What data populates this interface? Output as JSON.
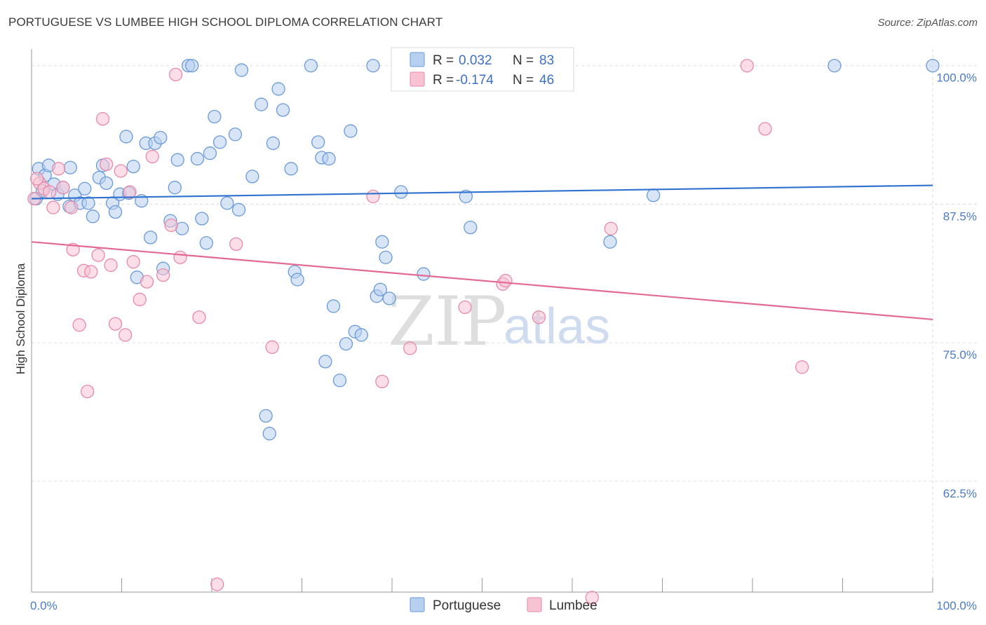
{
  "title": "PORTUGUESE VS LUMBEE HIGH SCHOOL DIPLOMA CORRELATION CHART",
  "source": "Source: ZipAtlas.com",
  "watermark": {
    "zip": "ZIP",
    "atlas": "atlas"
  },
  "colors": {
    "portuguese_fill": "#b8d0f0",
    "portuguese_stroke": "#6a9ad8",
    "portuguese_line": "#2f72cf",
    "lumbee_fill": "#f7c3d3",
    "lumbee_stroke": "#e88aa8",
    "lumbee_line": "#e36a93",
    "tick_label": "#4a7cc7",
    "grid": "#dcdcdc"
  },
  "legend": {
    "rows": [
      {
        "r_label": "R =",
        "r_value": "0.032",
        "n_label": "N =",
        "n_value": "83",
        "series": "portuguese"
      },
      {
        "r_label": "R =",
        "r_value": "-0.174",
        "n_label": "N =",
        "n_value": "46",
        "series": "lumbee"
      }
    ]
  },
  "chart_data": {
    "type": "scatter",
    "title": "PORTUGUESE VS LUMBEE HIGH SCHOOL DIPLOMA CORRELATION CHART",
    "xlabel": "",
    "ylabel": "High School Diploma",
    "xlim": [
      0,
      100
    ],
    "ylim": [
      52.5,
      101.5
    ],
    "x_tick_labels": [
      {
        "value": 0,
        "label": "0.0%"
      },
      {
        "value": 100,
        "label": "100.0%"
      }
    ],
    "y_tick_labels": [
      {
        "value": 100,
        "label": "100.0%"
      },
      {
        "value": 87.5,
        "label": "87.5%"
      },
      {
        "value": 75,
        "label": "75.0%"
      },
      {
        "value": 62.5,
        "label": "62.5%"
      }
    ],
    "grid": true,
    "legend_position": "top-center",
    "series": [
      {
        "name": "Portuguese",
        "r": 0.032,
        "n": 83,
        "trend": {
          "x": [
            0,
            100
          ],
          "y": [
            88.0,
            89.2
          ]
        },
        "points": [
          [
            0.8,
            90.7
          ],
          [
            1.5,
            90.1
          ],
          [
            1.9,
            91.0
          ],
          [
            2.5,
            89.3
          ],
          [
            2.9,
            88.4
          ],
          [
            3.5,
            89.0
          ],
          [
            4.2,
            87.3
          ],
          [
            4.3,
            90.8
          ],
          [
            4.8,
            88.3
          ],
          [
            5.4,
            87.6
          ],
          [
            5.9,
            88.9
          ],
          [
            6.3,
            87.6
          ],
          [
            6.8,
            86.4
          ],
          [
            7.5,
            89.9
          ],
          [
            7.9,
            91.0
          ],
          [
            8.3,
            89.4
          ],
          [
            9.0,
            87.6
          ],
          [
            9.3,
            86.8
          ],
          [
            9.8,
            88.4
          ],
          [
            10.5,
            93.6
          ],
          [
            10.8,
            88.5
          ],
          [
            11.3,
            90.9
          ],
          [
            11.7,
            80.9
          ],
          [
            12.2,
            87.8
          ],
          [
            12.7,
            93.0
          ],
          [
            13.2,
            84.5
          ],
          [
            13.7,
            93.0
          ],
          [
            14.3,
            93.5
          ],
          [
            14.6,
            81.7
          ],
          [
            15.4,
            86.0
          ],
          [
            15.9,
            89.0
          ],
          [
            16.2,
            91.5
          ],
          [
            16.7,
            85.3
          ],
          [
            17.4,
            100.0
          ],
          [
            17.8,
            100.0
          ],
          [
            18.4,
            91.6
          ],
          [
            18.9,
            86.2
          ],
          [
            19.4,
            84.0
          ],
          [
            19.8,
            92.1
          ],
          [
            20.3,
            95.4
          ],
          [
            20.9,
            93.1
          ],
          [
            21.7,
            87.6
          ],
          [
            22.6,
            93.8
          ],
          [
            23.0,
            87.0
          ],
          [
            23.3,
            99.6
          ],
          [
            24.5,
            90.0
          ],
          [
            25.5,
            96.5
          ],
          [
            26.0,
            68.4
          ],
          [
            26.4,
            66.8
          ],
          [
            26.8,
            93.0
          ],
          [
            27.4,
            97.9
          ],
          [
            27.9,
            96.0
          ],
          [
            28.8,
            90.7
          ],
          [
            29.2,
            81.4
          ],
          [
            29.5,
            80.7
          ],
          [
            31.0,
            100.0
          ],
          [
            31.8,
            93.1
          ],
          [
            32.2,
            91.7
          ],
          [
            32.6,
            73.3
          ],
          [
            33.0,
            91.6
          ],
          [
            33.5,
            78.3
          ],
          [
            34.2,
            71.6
          ],
          [
            34.9,
            74.9
          ],
          [
            35.4,
            94.1
          ],
          [
            35.9,
            76.0
          ],
          [
            36.6,
            75.7
          ],
          [
            37.9,
            100.0
          ],
          [
            38.3,
            79.2
          ],
          [
            38.7,
            79.8
          ],
          [
            38.9,
            84.1
          ],
          [
            39.3,
            82.7
          ],
          [
            39.7,
            79.0
          ],
          [
            41.0,
            88.6
          ],
          [
            43.5,
            81.2
          ],
          [
            45.7,
            100.0
          ],
          [
            48.2,
            88.2
          ],
          [
            48.7,
            85.4
          ],
          [
            64.2,
            84.1
          ],
          [
            69.0,
            88.3
          ],
          [
            89.1,
            100.0
          ],
          [
            100.0,
            100.0
          ],
          [
            0.5,
            88.0
          ],
          [
            1.2,
            88.7
          ]
        ]
      },
      {
        "name": "Lumbee",
        "r": -0.174,
        "n": 46,
        "trend": {
          "x": [
            0,
            100
          ],
          "y": [
            84.1,
            77.1
          ]
        },
        "points": [
          [
            0.3,
            88.0
          ],
          [
            0.9,
            89.4
          ],
          [
            1.4,
            88.9
          ],
          [
            2.0,
            88.6
          ],
          [
            2.4,
            87.2
          ],
          [
            3.0,
            90.7
          ],
          [
            3.5,
            89.0
          ],
          [
            4.4,
            87.2
          ],
          [
            4.6,
            83.4
          ],
          [
            5.3,
            76.6
          ],
          [
            5.8,
            81.5
          ],
          [
            6.2,
            70.6
          ],
          [
            6.6,
            81.4
          ],
          [
            7.4,
            82.9
          ],
          [
            7.9,
            95.2
          ],
          [
            8.3,
            91.1
          ],
          [
            8.8,
            82.0
          ],
          [
            9.3,
            76.7
          ],
          [
            9.9,
            90.5
          ],
          [
            10.4,
            75.7
          ],
          [
            10.9,
            88.6
          ],
          [
            11.3,
            82.3
          ],
          [
            12.0,
            78.9
          ],
          [
            12.8,
            80.5
          ],
          [
            13.4,
            91.8
          ],
          [
            14.6,
            81.1
          ],
          [
            15.5,
            85.6
          ],
          [
            16.0,
            99.2
          ],
          [
            16.5,
            82.7
          ],
          [
            18.6,
            77.3
          ],
          [
            20.6,
            53.2
          ],
          [
            22.7,
            83.9
          ],
          [
            26.7,
            74.6
          ],
          [
            37.9,
            88.2
          ],
          [
            38.9,
            71.5
          ],
          [
            42.0,
            74.5
          ],
          [
            48.1,
            78.2
          ],
          [
            52.3,
            80.3
          ],
          [
            52.6,
            80.6
          ],
          [
            56.3,
            77.3
          ],
          [
            62.2,
            52.0
          ],
          [
            64.3,
            85.3
          ],
          [
            79.4,
            100.0
          ],
          [
            81.4,
            94.3
          ],
          [
            85.5,
            72.8
          ],
          [
            0.6,
            89.8
          ]
        ]
      }
    ]
  }
}
